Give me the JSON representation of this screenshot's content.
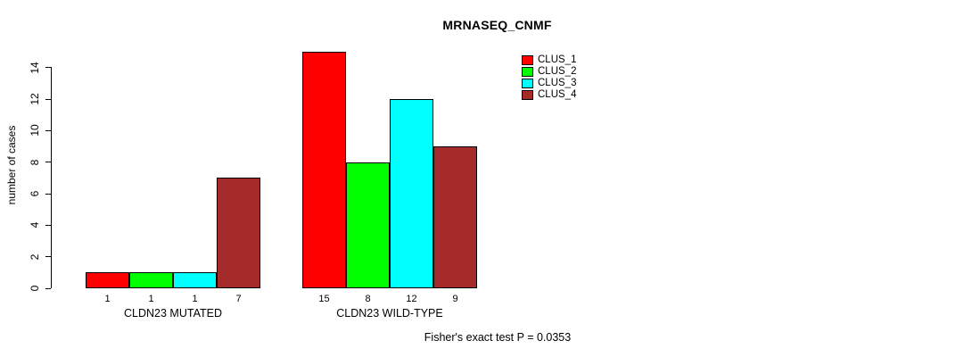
{
  "title": "MRNASEQ_CNMF",
  "caption": "Fisher's exact test P = 0.0353",
  "chart_data": {
    "type": "bar",
    "title": "MRNASEQ_CNMF",
    "xlabel": "",
    "ylabel": "number of cases",
    "ylim": [
      0,
      15
    ],
    "yticks": [
      0,
      2,
      4,
      6,
      8,
      10,
      12,
      14
    ],
    "grid": false,
    "legend_position": "top-right",
    "categories": [
      "CLDN23 MUTATED",
      "CLDN23 WILD-TYPE"
    ],
    "series": [
      {
        "name": "CLUS_1",
        "color": "#FF0000",
        "values": [
          1,
          15
        ]
      },
      {
        "name": "CLUS_2",
        "color": "#00FF00",
        "values": [
          1,
          8
        ]
      },
      {
        "name": "CLUS_3",
        "color": "#00FFFF",
        "values": [
          1,
          12
        ]
      },
      {
        "name": "CLUS_4",
        "color": "#A52A2A",
        "values": [
          7,
          9
        ]
      }
    ],
    "bar_value_labels": {
      "CLDN23 MUTATED": [
        1,
        1,
        1,
        7
      ],
      "CLDN23 WILD-TYPE": [
        15,
        8,
        12,
        9
      ]
    },
    "annotation": "Fisher's exact test P = 0.0353",
    "colors": {
      "background": "#FFFFFF",
      "axis": "#000000",
      "bar_border": "#000000",
      "text": "#000000"
    }
  }
}
